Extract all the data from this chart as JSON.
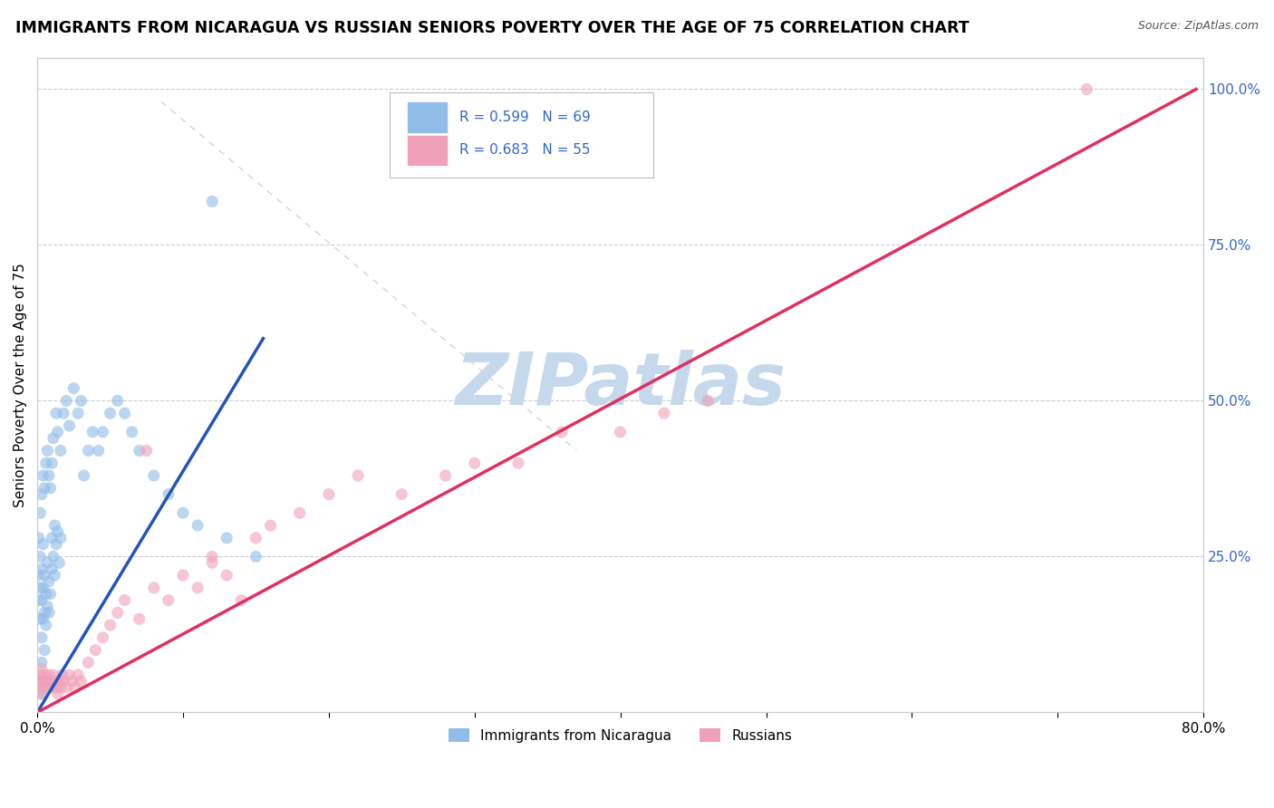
{
  "title": "IMMIGRANTS FROM NICARAGUA VS RUSSIAN SENIORS POVERTY OVER THE AGE OF 75 CORRELATION CHART",
  "source": "Source: ZipAtlas.com",
  "ylabel": "Seniors Poverty Over the Age of 75",
  "legend_label1": "Immigrants from Nicaragua",
  "legend_label2": "Russians",
  "blue_color": "#90bce8",
  "pink_color": "#f0a0b8",
  "blue_line_color": "#2255bb",
  "pink_line_color": "#e03060",
  "diag_line_color": "#aaaaaa",
  "watermark_text": "ZIPatlas",
  "watermark_color": "#c5d8ec",
  "background_color": "#ffffff",
  "grid_color": "#cccccc",
  "title_fontsize": 12.5,
  "axis_fontsize": 11,
  "source_fontsize": 9,
  "legend_r_n_color": "#3366cc",
  "xlim": [
    0.0,
    0.8
  ],
  "ylim": [
    0.0,
    1.05
  ],
  "right_yticks": [
    0.0,
    0.25,
    0.5,
    0.75,
    1.0
  ],
  "right_yticklabels": [
    "",
    "25.0%",
    "50.0%",
    "75.0%",
    "100.0%"
  ],
  "xtick_labels": [
    "0.0%",
    "80.0%"
  ],
  "blue_line_x": [
    0.0,
    0.155
  ],
  "blue_line_y": [
    0.0,
    0.6
  ],
  "pink_line_x": [
    0.0,
    0.795
  ],
  "pink_line_y": [
    0.0,
    1.0
  ],
  "diag_line_x": [
    0.085,
    0.37
  ],
  "diag_line_y": [
    0.98,
    0.42
  ]
}
